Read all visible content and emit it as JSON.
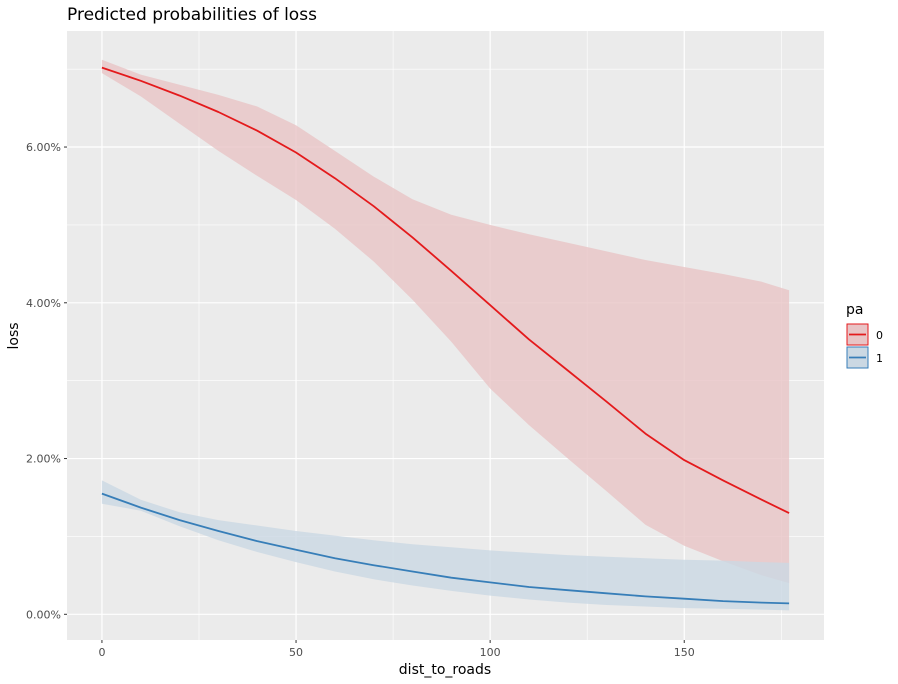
{
  "chart_data": {
    "type": "line",
    "title": "Predicted probabilities of loss",
    "xlabel": "dist_to_roads",
    "ylabel": "loss",
    "xlim": [
      -9,
      186
    ],
    "ylim": [
      -0.0033,
      0.0749
    ],
    "x_ticks": [
      0,
      50,
      100,
      150
    ],
    "y_ticks": [
      0,
      0.02,
      0.04,
      0.06
    ],
    "y_tick_labels": [
      "0.00%",
      "2.00%",
      "4.00%",
      "6.00%"
    ],
    "grid": true,
    "legend": {
      "title": "pa",
      "position": "right",
      "entries": [
        "0",
        "1"
      ]
    },
    "x": [
      0,
      10,
      20,
      30,
      40,
      50,
      60,
      70,
      80,
      90,
      100,
      110,
      120,
      130,
      140,
      150,
      160,
      170,
      177
    ],
    "series": [
      {
        "name": "0",
        "color": "#e41a1c",
        "fill": "#e8c4c6",
        "values": [
          0.0702,
          0.0685,
          0.0666,
          0.0645,
          0.0621,
          0.0593,
          0.056,
          0.0524,
          0.0484,
          0.0441,
          0.0397,
          0.0353,
          0.0313,
          0.0273,
          0.0232,
          0.0198,
          0.0172,
          0.0147,
          0.013
        ],
        "lower": [
          0.0695,
          0.0665,
          0.063,
          0.0595,
          0.0563,
          0.0532,
          0.0495,
          0.0453,
          0.0404,
          0.035,
          0.029,
          0.0243,
          0.02,
          0.0158,
          0.0115,
          0.0088,
          0.0068,
          0.005,
          0.004
        ],
        "upper": [
          0.0712,
          0.0693,
          0.068,
          0.0667,
          0.0652,
          0.0628,
          0.0595,
          0.0562,
          0.0533,
          0.0513,
          0.05,
          0.0488,
          0.0477,
          0.0466,
          0.0455,
          0.0446,
          0.0437,
          0.0427,
          0.0416
        ]
      },
      {
        "name": "1",
        "color": "#377eb8",
        "fill": "#cbd8e3",
        "values": [
          0.0155,
          0.0137,
          0.0121,
          0.0107,
          0.0094,
          0.0083,
          0.0072,
          0.0063,
          0.0055,
          0.0047,
          0.0041,
          0.0035,
          0.0031,
          0.0027,
          0.0023,
          0.002,
          0.0017,
          0.0015,
          0.0014
        ],
        "lower": [
          0.0142,
          0.0133,
          0.0113,
          0.0095,
          0.008,
          0.0067,
          0.0055,
          0.0045,
          0.0037,
          0.003,
          0.0024,
          0.0019,
          0.0015,
          0.0012,
          0.001,
          0.0008,
          0.0007,
          0.0006,
          0.0005
        ],
        "upper": [
          0.0172,
          0.0147,
          0.0131,
          0.0121,
          0.0114,
          0.0107,
          0.0101,
          0.0095,
          0.009,
          0.0086,
          0.0082,
          0.0079,
          0.0076,
          0.0074,
          0.0072,
          0.007,
          0.0069,
          0.0067,
          0.0066
        ]
      }
    ]
  }
}
